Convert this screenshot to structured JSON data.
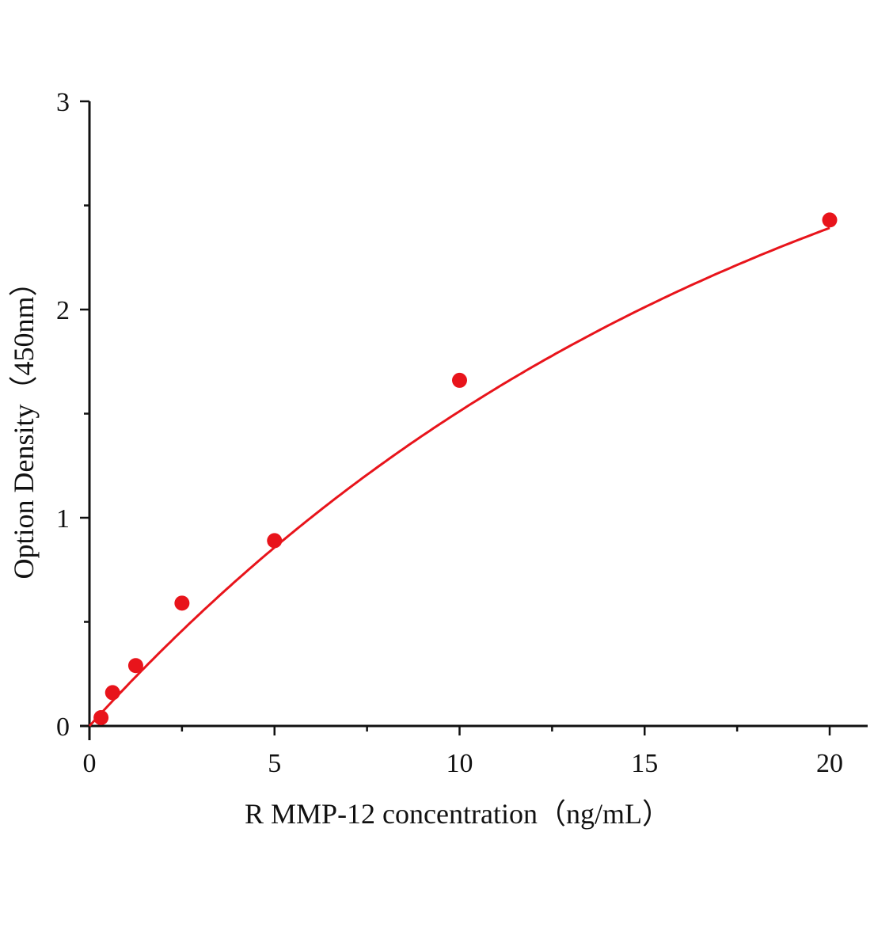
{
  "chart_data": {
    "type": "scatter",
    "title": "",
    "xlabel": "R MMP-12  concentration（ng/mL）",
    "ylabel": "Option Density（450nm）",
    "xlim": [
      0,
      20
    ],
    "ylim": [
      0,
      3
    ],
    "xticks": [
      "0",
      "5",
      "10",
      "15",
      "20"
    ],
    "yticks": [
      "0",
      "1",
      "2",
      "3"
    ],
    "grid": false,
    "legend": "none",
    "color": "#e8141b",
    "series": [
      {
        "x": [
          0.3125,
          0.625,
          1.25,
          2.5,
          5,
          10,
          20
        ],
        "y": [
          0.04,
          0.16,
          0.29,
          0.59,
          0.89,
          1.66,
          2.43
        ],
        "fit": "smooth curve through origin"
      }
    ]
  }
}
